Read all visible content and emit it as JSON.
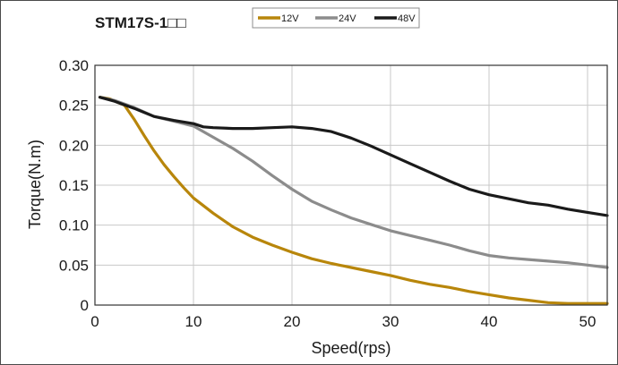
{
  "chart_data": {
    "type": "line",
    "title": "STM17S-1□□",
    "xlabel": "Speed(rps)",
    "ylabel": "Torque(N.m)",
    "xlim": [
      0,
      52
    ],
    "ylim": [
      0,
      0.3
    ],
    "xticks": [
      0,
      10,
      20,
      30,
      40,
      50
    ],
    "xtick_labels": [
      "0",
      "10",
      "20",
      "30",
      "40",
      "50"
    ],
    "yticks": [
      0,
      0.05,
      0.1,
      0.15,
      0.2,
      0.25,
      0.3
    ],
    "ytick_labels": [
      "0",
      "0.05",
      "0.10",
      "0.15",
      "0.20",
      "0.25",
      "0.30"
    ],
    "grid": true,
    "legend_position": "top",
    "series": [
      {
        "name": "12V",
        "color": "#b8860b",
        "x": [
          0.5,
          1.5,
          3,
          4,
          5,
          6,
          7,
          8,
          9,
          10,
          12,
          14,
          16,
          18,
          20,
          22,
          24,
          26,
          28,
          30,
          32,
          34,
          36,
          38,
          40,
          42,
          44,
          46,
          48,
          50,
          52
        ],
        "y": [
          0.26,
          0.258,
          0.25,
          0.232,
          0.212,
          0.193,
          0.176,
          0.161,
          0.147,
          0.134,
          0.115,
          0.098,
          0.085,
          0.075,
          0.066,
          0.058,
          0.052,
          0.047,
          0.042,
          0.037,
          0.031,
          0.026,
          0.022,
          0.017,
          0.013,
          0.009,
          0.006,
          0.003,
          0.002,
          0.002,
          0.002
        ]
      },
      {
        "name": "24V",
        "color": "#8c8c8c",
        "x": [
          0.5,
          2,
          4,
          6,
          8,
          10,
          12,
          14,
          16,
          18,
          20,
          22,
          24,
          26,
          28,
          30,
          32,
          34,
          36,
          38,
          40,
          42,
          44,
          46,
          48,
          50,
          52
        ],
        "y": [
          0.26,
          0.256,
          0.247,
          0.236,
          0.23,
          0.224,
          0.21,
          0.196,
          0.18,
          0.162,
          0.145,
          0.13,
          0.119,
          0.109,
          0.101,
          0.093,
          0.087,
          0.081,
          0.075,
          0.068,
          0.062,
          0.059,
          0.057,
          0.055,
          0.053,
          0.05,
          0.047
        ]
      },
      {
        "name": "48V",
        "color": "#1a1a1a",
        "x": [
          0.5,
          2,
          4,
          6,
          8,
          10,
          11,
          12,
          14,
          16,
          18,
          20,
          22,
          24,
          26,
          28,
          30,
          32,
          34,
          36,
          38,
          40,
          42,
          44,
          46,
          48,
          50,
          52
        ],
        "y": [
          0.26,
          0.255,
          0.246,
          0.236,
          0.231,
          0.227,
          0.223,
          0.222,
          0.221,
          0.221,
          0.222,
          0.223,
          0.221,
          0.217,
          0.209,
          0.199,
          0.188,
          0.177,
          0.166,
          0.155,
          0.145,
          0.138,
          0.133,
          0.128,
          0.125,
          0.12,
          0.116,
          0.112
        ]
      }
    ]
  }
}
